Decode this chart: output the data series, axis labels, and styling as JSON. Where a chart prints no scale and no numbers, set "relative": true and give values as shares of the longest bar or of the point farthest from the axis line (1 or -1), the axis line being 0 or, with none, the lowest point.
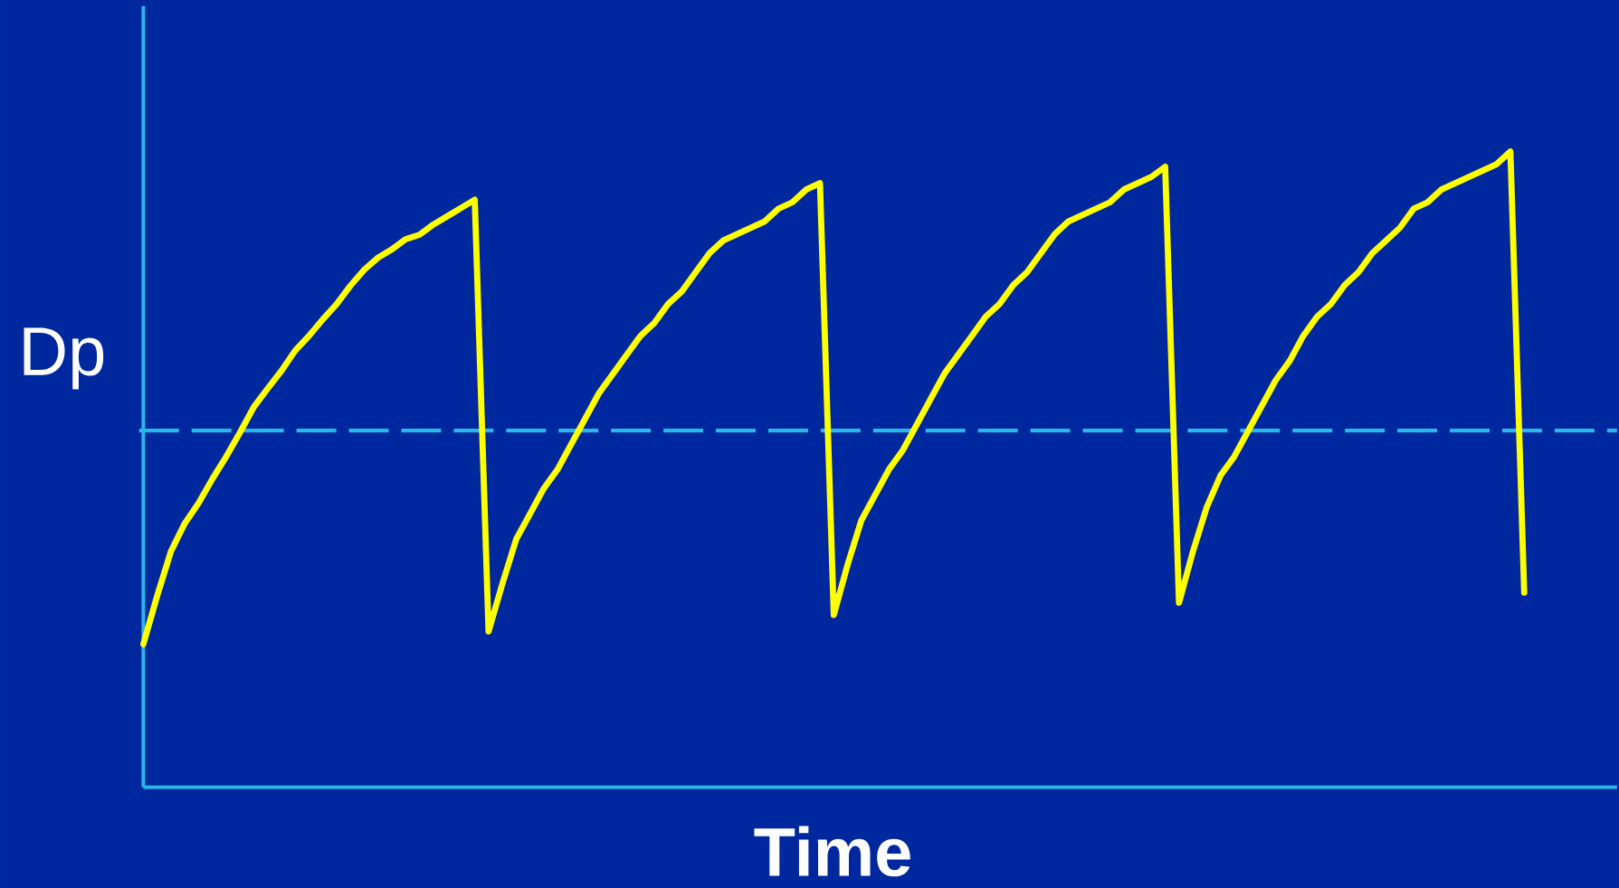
{
  "chart_data": {
    "type": "line",
    "relative": true,
    "xlabel": "Time",
    "ylabel": "Dp",
    "categories": [
      null,
      null,
      null,
      null,
      null,
      null,
      null,
      null,
      null,
      null,
      null,
      null,
      null,
      null,
      null,
      null,
      null,
      null,
      null,
      null,
      null,
      null,
      null,
      null,
      null,
      null,
      null,
      null,
      null,
      null,
      null,
      null,
      null,
      null,
      null,
      null,
      null,
      null,
      null,
      null,
      null,
      null,
      null,
      null,
      null,
      null,
      null,
      null,
      null,
      null,
      null,
      null,
      null,
      null,
      null,
      null,
      null,
      null,
      null,
      null,
      null,
      null,
      null,
      null,
      null,
      null,
      null,
      null,
      null,
      null,
      null,
      null,
      null,
      null,
      null,
      null,
      null,
      null,
      null,
      null,
      null,
      null,
      null,
      null,
      null,
      null,
      null,
      null,
      null,
      null,
      null,
      null,
      null,
      null,
      null,
      null,
      null,
      null,
      null,
      null,
      null
    ],
    "series": [
      {
        "color": "#ffff00",
        "values": [
          0.225,
          0.301,
          0.371,
          0.415,
          0.447,
          0.485,
          0.52,
          0.558,
          0.598,
          0.627,
          0.655,
          0.687,
          0.71,
          0.736,
          0.76,
          0.789,
          0.814,
          0.833,
          0.846,
          0.862,
          0.869,
          0.885,
          0.898,
          0.911,
          0.924,
          0.245,
          0.32,
          0.39,
          0.43,
          0.47,
          0.5,
          0.54,
          0.58,
          0.62,
          0.65,
          0.68,
          0.71,
          0.73,
          0.76,
          0.78,
          0.81,
          0.84,
          0.86,
          0.87,
          0.88,
          0.89,
          0.91,
          0.92,
          0.94,
          0.95,
          0.271,
          0.35,
          0.42,
          0.46,
          0.5,
          0.53,
          0.57,
          0.61,
          0.65,
          0.68,
          0.71,
          0.74,
          0.76,
          0.79,
          0.81,
          0.84,
          0.87,
          0.89,
          0.9,
          0.91,
          0.92,
          0.94,
          0.95,
          0.96,
          0.976,
          0.29,
          0.37,
          0.44,
          0.49,
          0.52,
          0.56,
          0.6,
          0.64,
          0.67,
          0.71,
          0.74,
          0.76,
          0.79,
          0.81,
          0.84,
          0.86,
          0.88,
          0.91,
          0.92,
          0.94,
          0.95,
          0.96,
          0.97,
          0.98,
          1.0,
          0.306
        ]
      }
    ],
    "ref_lines": [
      {
        "axis": "y",
        "value": 0.561,
        "color": "#29b6e8",
        "line_style": "dashed"
      }
    ],
    "line_style": "solid",
    "marker": "none"
  }
}
